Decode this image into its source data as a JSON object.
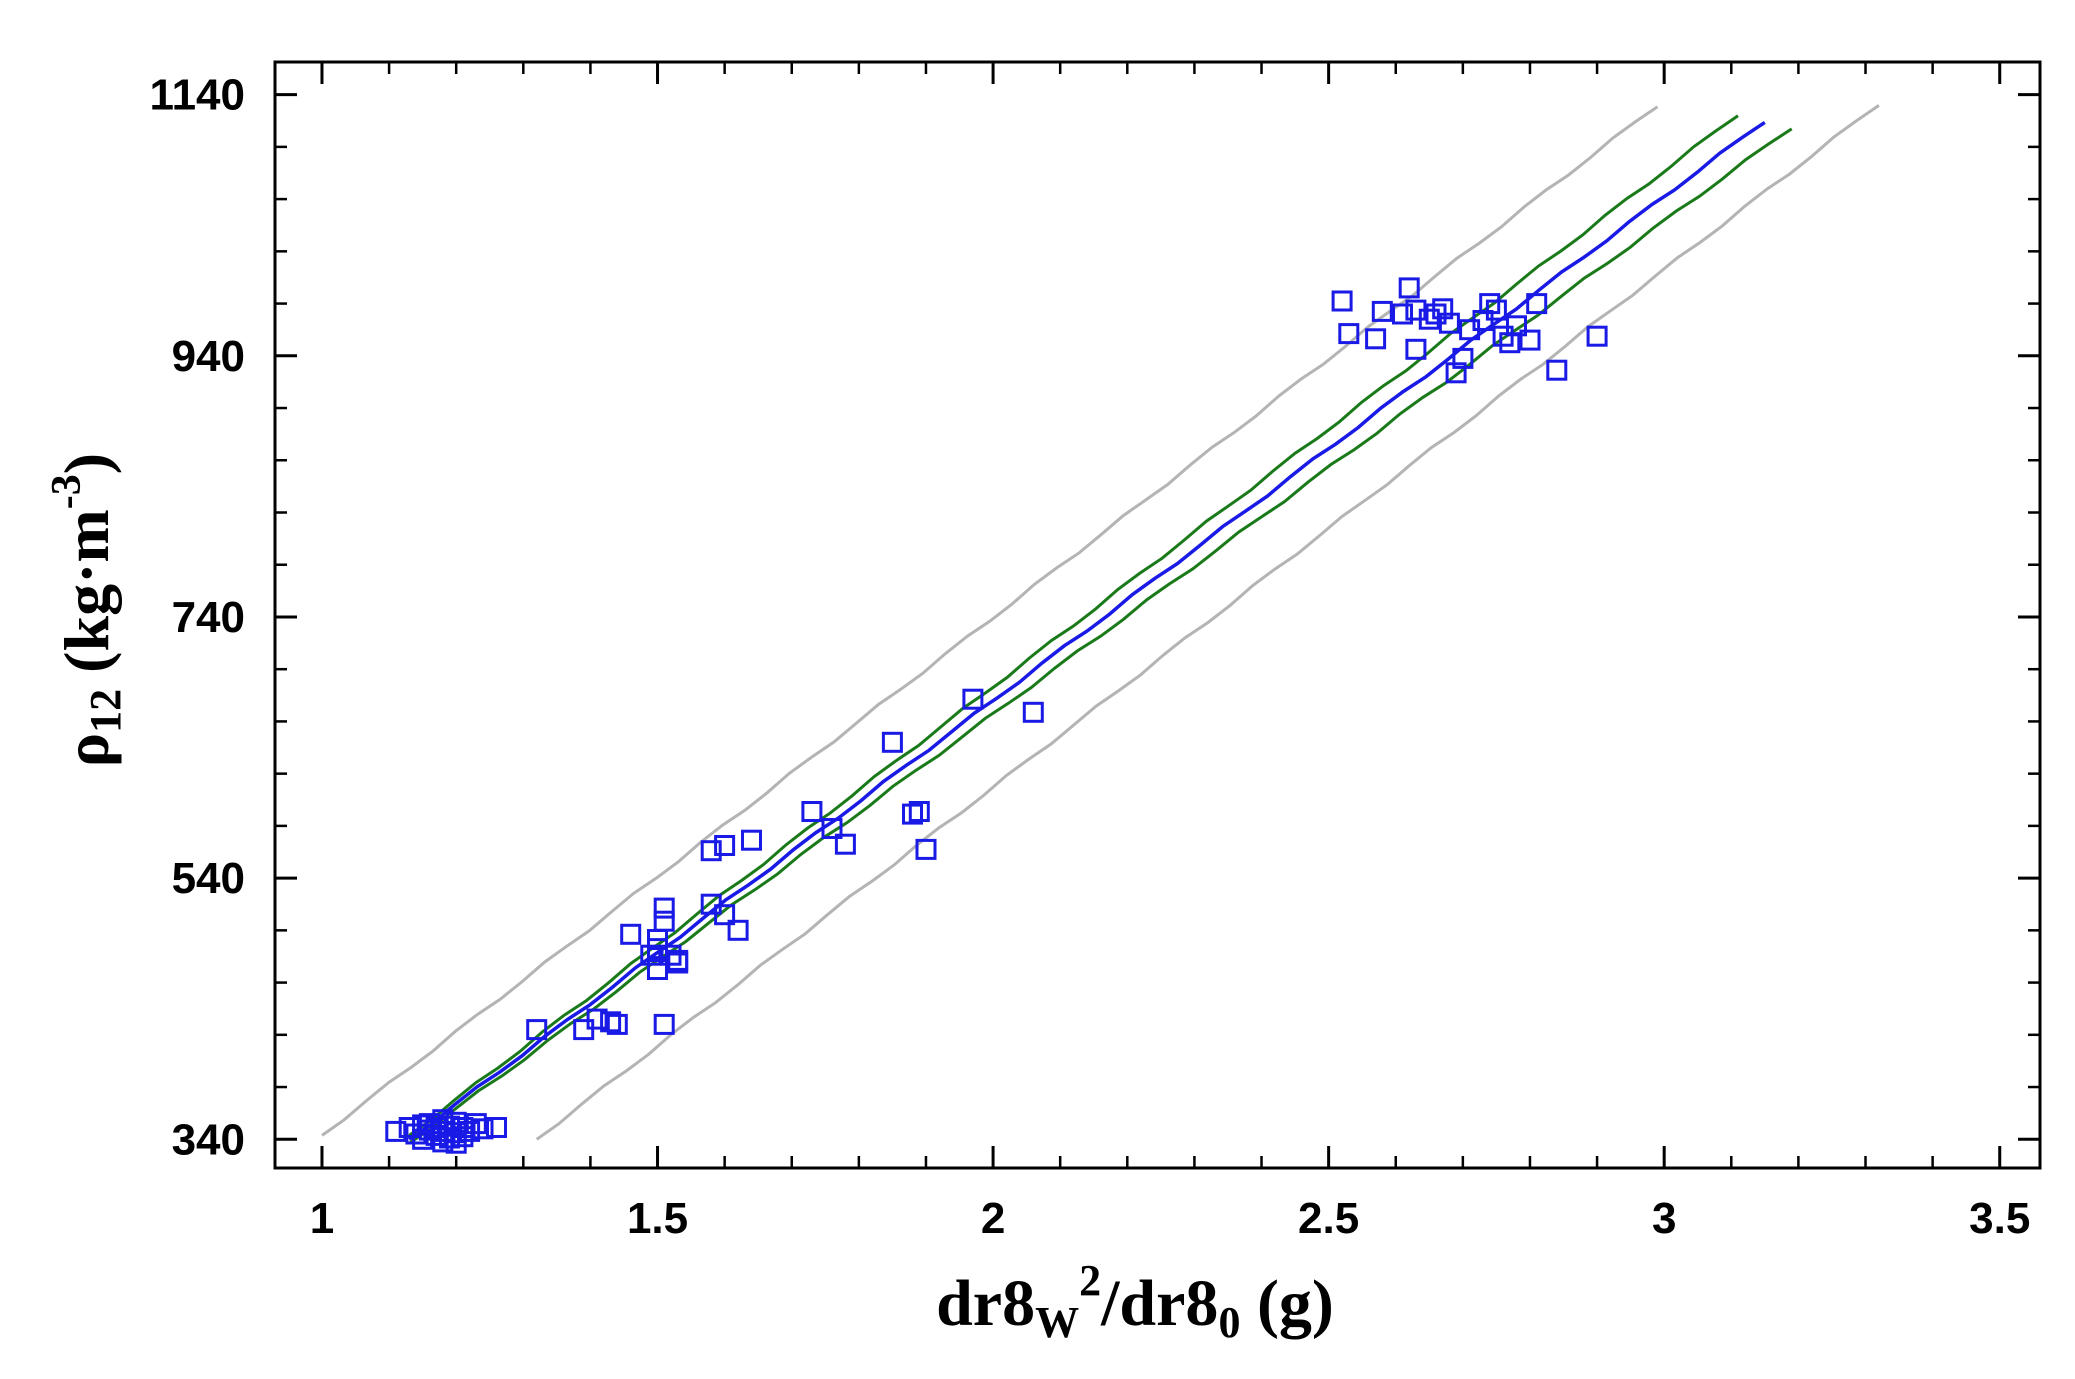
{
  "chart_data": {
    "type": "scatter",
    "title": "",
    "xlabel": {
      "main": "dr8",
      "sub1": "W",
      "sup": "2",
      "mid": "/dr8",
      "sub2": "0",
      "unit": " (g)"
    },
    "ylabel": {
      "main": "ρ",
      "sub": "12",
      "unit": " (kg·m",
      "sup": "-3",
      "close": ")"
    },
    "xlim": [
      0.93,
      3.56
    ],
    "ylim": [
      318,
      1165
    ],
    "x_ticks": [
      1,
      1.5,
      2,
      2.5,
      3,
      3.5
    ],
    "x_tick_labels": [
      "1",
      "1.5",
      "2",
      "2.5",
      "3",
      "3.5"
    ],
    "y_ticks": [
      340,
      540,
      740,
      940,
      1140
    ],
    "y_tick_labels": [
      "340",
      "540",
      "740",
      "940",
      "1140"
    ],
    "colors": {
      "points": "#1a1ae6",
      "fit": "#1a1ae6",
      "confidence": "#1a7a1a",
      "prediction": "#b4b4b4",
      "axis": "#000000"
    },
    "series": [
      {
        "name": "fit",
        "kind": "line",
        "x": [
          1.13,
          3.15
        ],
        "y": [
          340,
          1120
        ]
      },
      {
        "name": "confidence-upper",
        "kind": "line",
        "x": [
          1.13,
          3.11
        ],
        "y": [
          343,
          1125
        ]
      },
      {
        "name": "confidence-lower",
        "kind": "line",
        "x": [
          1.13,
          3.19
        ],
        "y": [
          337,
          1115
        ]
      },
      {
        "name": "prediction-upper",
        "kind": "line",
        "x": [
          1.0,
          2.99
        ],
        "y": [
          343,
          1132
        ]
      },
      {
        "name": "prediction-lower",
        "kind": "line",
        "x": [
          1.32,
          3.32
        ],
        "y": [
          340,
          1133
        ]
      },
      {
        "name": "observed",
        "kind": "scatter",
        "points": [
          [
            1.11,
            346
          ],
          [
            1.13,
            349
          ],
          [
            1.14,
            344
          ],
          [
            1.15,
            351
          ],
          [
            1.15,
            340
          ],
          [
            1.16,
            347
          ],
          [
            1.16,
            352
          ],
          [
            1.17,
            343
          ],
          [
            1.17,
            349
          ],
          [
            1.18,
            338
          ],
          [
            1.18,
            346
          ],
          [
            1.18,
            355
          ],
          [
            1.19,
            341
          ],
          [
            1.19,
            350
          ],
          [
            1.2,
            337
          ],
          [
            1.2,
            345
          ],
          [
            1.2,
            353
          ],
          [
            1.21,
            342
          ],
          [
            1.21,
            349
          ],
          [
            1.22,
            346
          ],
          [
            1.23,
            352
          ],
          [
            1.24,
            348
          ],
          [
            1.26,
            349
          ],
          [
            1.32,
            424
          ],
          [
            1.39,
            424
          ],
          [
            1.41,
            432
          ],
          [
            1.43,
            430
          ],
          [
            1.44,
            428
          ],
          [
            1.46,
            497
          ],
          [
            1.49,
            481
          ],
          [
            1.5,
            486
          ],
          [
            1.5,
            493
          ],
          [
            1.5,
            470
          ],
          [
            1.51,
            428
          ],
          [
            1.51,
            507
          ],
          [
            1.51,
            517
          ],
          [
            1.52,
            481
          ],
          [
            1.53,
            477
          ],
          [
            1.53,
            475
          ],
          [
            1.58,
            561
          ],
          [
            1.58,
            520
          ],
          [
            1.6,
            565
          ],
          [
            1.6,
            512
          ],
          [
            1.62,
            500
          ],
          [
            1.64,
            569
          ],
          [
            1.73,
            591
          ],
          [
            1.76,
            578
          ],
          [
            1.78,
            566
          ],
          [
            1.85,
            644
          ],
          [
            1.88,
            589
          ],
          [
            1.89,
            591
          ],
          [
            1.9,
            562
          ],
          [
            1.97,
            677
          ],
          [
            2.06,
            667
          ],
          [
            2.52,
            982
          ],
          [
            2.53,
            957
          ],
          [
            2.57,
            953
          ],
          [
            2.58,
            974
          ],
          [
            2.61,
            972
          ],
          [
            2.62,
            992
          ],
          [
            2.63,
            945
          ],
          [
            2.63,
            975
          ],
          [
            2.65,
            968
          ],
          [
            2.66,
            972
          ],
          [
            2.67,
            976
          ],
          [
            2.68,
            965
          ],
          [
            2.69,
            927
          ],
          [
            2.7,
            938
          ],
          [
            2.71,
            960
          ],
          [
            2.73,
            967
          ],
          [
            2.74,
            980
          ],
          [
            2.75,
            975
          ],
          [
            2.76,
            955
          ],
          [
            2.77,
            950
          ],
          [
            2.78,
            963
          ],
          [
            2.8,
            952
          ],
          [
            2.81,
            980
          ],
          [
            2.84,
            929
          ],
          [
            2.9,
            955
          ]
        ]
      }
    ]
  }
}
